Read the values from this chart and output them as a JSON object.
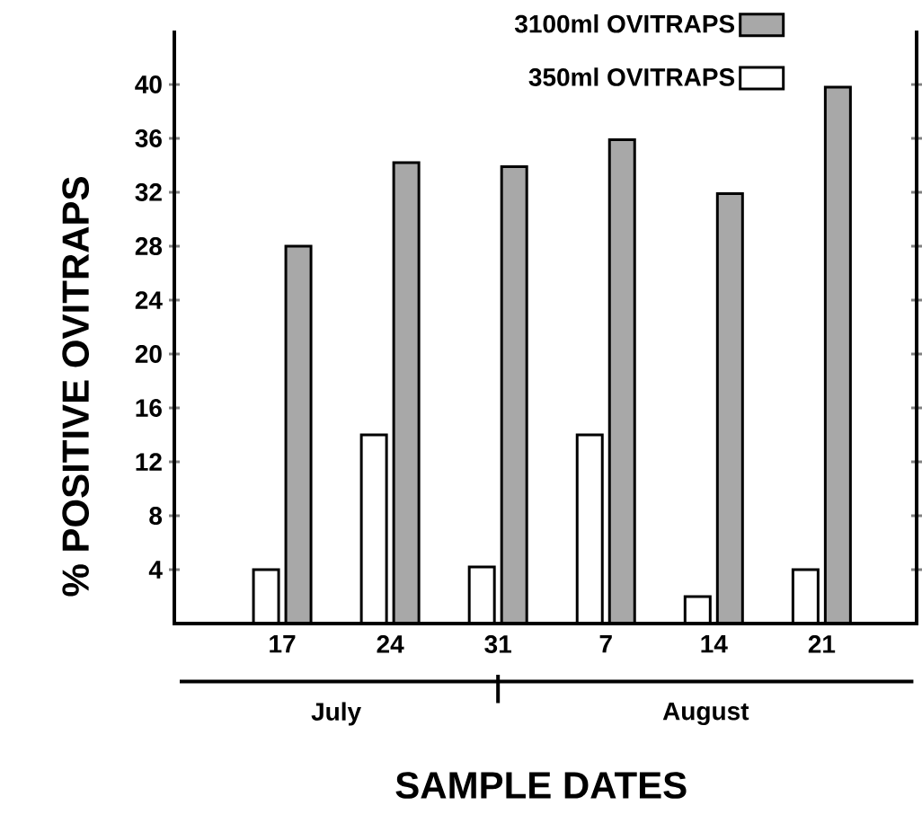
{
  "chart_data": {
    "type": "bar",
    "xlabel": "SAMPLE DATES",
    "ylabel": "% POSITIVE OVITRAPS",
    "categories": [
      "17",
      "24",
      "31",
      "7",
      "14",
      "21"
    ],
    "series": [
      {
        "name": "350ml OVITRAPS",
        "color": "#ffffff",
        "values": [
          4,
          14,
          4.2,
          14,
          2,
          4
        ]
      },
      {
        "name": "3100ml OVITRAPS",
        "color": "#a8a8a8",
        "values": [
          28,
          34.2,
          33.9,
          35.9,
          31.9,
          39.8
        ]
      }
    ],
    "ylim": [
      0,
      44
    ],
    "yticks": [
      4,
      8,
      12,
      16,
      20,
      24,
      28,
      32,
      36,
      40
    ],
    "legend": "top right",
    "annotations": [
      "July",
      "August"
    ]
  }
}
